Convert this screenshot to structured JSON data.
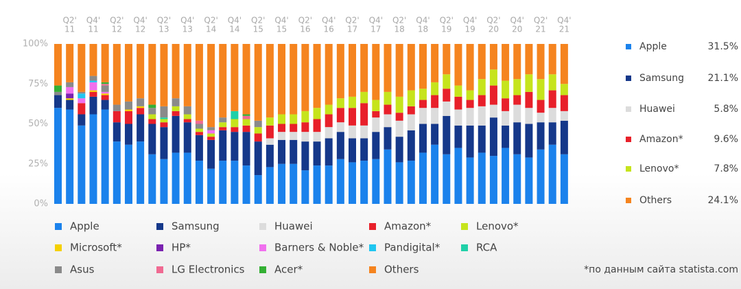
{
  "chart_data": {
    "type": "stacked_bar",
    "categories": [
      null,
      {
        "q": "Q2'",
        "y": "11"
      },
      null,
      {
        "q": "Q4'",
        "y": "11"
      },
      null,
      {
        "q": "Q2'",
        "y": "12"
      },
      null,
      {
        "q": "Q4'",
        "y": "12"
      },
      null,
      {
        "q": "Q2'",
        "y": "13"
      },
      null,
      {
        "q": "Q4'",
        "y": "13"
      },
      null,
      {
        "q": "Q2'",
        "y": "14"
      },
      null,
      {
        "q": "Q4'",
        "y": "14"
      },
      null,
      {
        "q": "Q2'",
        "y": "15"
      },
      null,
      {
        "q": "Q4'",
        "y": "15"
      },
      null,
      {
        "q": "Q2'",
        "y": "16"
      },
      null,
      {
        "q": "Q4'",
        "y": "16"
      },
      null,
      {
        "q": "Q2'",
        "y": "17"
      },
      null,
      {
        "q": "Q4'",
        "y": "17"
      },
      null,
      {
        "q": "Q2'",
        "y": "18"
      },
      null,
      {
        "q": "Q4'",
        "y": "18"
      },
      null,
      {
        "q": "Q2'",
        "y": "19"
      },
      null,
      {
        "q": "Q4'",
        "y": "19"
      },
      null,
      {
        "q": "Q2'",
        "y": "20"
      },
      null,
      {
        "q": "Q4'",
        "y": "20"
      },
      null,
      {
        "q": "Q2'",
        "y": "21"
      },
      null,
      {
        "q": "Q4'",
        "y": "21"
      }
    ],
    "series": [
      {
        "name": "Apple",
        "color": "#1b82ec",
        "values": [
          60,
          59,
          49,
          56,
          59,
          39,
          37,
          39,
          31,
          28,
          32,
          32,
          27,
          22,
          27,
          27,
          24,
          18,
          23,
          25,
          25,
          21,
          24,
          24,
          28,
          26,
          27,
          28,
          34,
          26,
          27,
          32,
          37,
          31,
          35,
          29,
          32,
          30,
          35,
          31,
          29,
          34,
          37,
          31
        ]
      },
      {
        "name": "Samsung",
        "color": "#15388a",
        "values": [
          8,
          6,
          7,
          11,
          6,
          12,
          13,
          17,
          19,
          20,
          23,
          19,
          16,
          18,
          19,
          18,
          21,
          21,
          14,
          15,
          15,
          18,
          15,
          17,
          17,
          15,
          14,
          17,
          14,
          16,
          19,
          18,
          13,
          24,
          14,
          20,
          17,
          24,
          14,
          20,
          21,
          17,
          14,
          21
        ]
      },
      {
        "name": "Huawei",
        "color": "#dcdcdc",
        "values": [
          0,
          0,
          0,
          0,
          0,
          0,
          0,
          0,
          0,
          0,
          0,
          0,
          0,
          0,
          0,
          0,
          0,
          0,
          4,
          5,
          5,
          6,
          6,
          7,
          6,
          8,
          8,
          9,
          8,
          10,
          10,
          10,
          10,
          9,
          10,
          11,
          12,
          8,
          9,
          11,
          10,
          6,
          9,
          6
        ]
      },
      {
        "name": "Amazon*",
        "color": "#e8202a",
        "values": [
          0,
          0,
          7,
          3,
          3,
          7,
          8,
          4,
          3,
          3,
          3,
          2,
          2,
          2,
          2,
          3,
          4,
          5,
          8,
          5,
          5,
          6,
          8,
          8,
          9,
          11,
          14,
          4,
          6,
          5,
          5,
          5,
          8,
          8,
          8,
          5,
          7,
          12,
          8,
          6,
          10,
          8,
          11,
          10
        ]
      },
      {
        "name": "Lenovo*",
        "color": "#c6e41c",
        "values": [
          0,
          0,
          0,
          0,
          0,
          0,
          0,
          0,
          3,
          2,
          3,
          3,
          2,
          2,
          3,
          5,
          4,
          4,
          5,
          6,
          6,
          7,
          7,
          6,
          6,
          7,
          7,
          7,
          8,
          10,
          10,
          7,
          8,
          9,
          7,
          6,
          10,
          10,
          11,
          10,
          11,
          13,
          10,
          7
        ]
      },
      {
        "name": "Microsoft*",
        "color": "#f5d000",
        "values": [
          0,
          1,
          0,
          1,
          1,
          0,
          1,
          1,
          0,
          0,
          0,
          0,
          0,
          0,
          0,
          0,
          0,
          0,
          0,
          0,
          0,
          0,
          0,
          0,
          0,
          0,
          0,
          0,
          0,
          0,
          0,
          0,
          0,
          0,
          0,
          0,
          0,
          0,
          0,
          0,
          0,
          0,
          0,
          0
        ]
      },
      {
        "name": "HP*",
        "color": "#7a22b0",
        "values": [
          0,
          3,
          0,
          0,
          0,
          0,
          0,
          0,
          0,
          0,
          0,
          0,
          0,
          0,
          0,
          0,
          0,
          0,
          0,
          0,
          0,
          0,
          0,
          0,
          0,
          0,
          0,
          0,
          0,
          0,
          0,
          0,
          0,
          0,
          0,
          0,
          0,
          0,
          0,
          0,
          0,
          0,
          0,
          0
        ]
      },
      {
        "name": "Barners & Noble*",
        "color": "#f070ee",
        "values": [
          0,
          4,
          3,
          5,
          1,
          0,
          0,
          0,
          0,
          0,
          0,
          0,
          0,
          2,
          0,
          0,
          0,
          0,
          0,
          0,
          0,
          0,
          0,
          0,
          0,
          0,
          0,
          0,
          0,
          0,
          0,
          0,
          0,
          0,
          0,
          0,
          0,
          0,
          0,
          0,
          0,
          0,
          0,
          0
        ]
      },
      {
        "name": "Pandigital*",
        "color": "#20c6f0",
        "values": [
          0,
          0,
          3,
          1,
          0,
          0,
          0,
          0,
          0,
          0,
          0,
          0,
          0,
          0,
          0,
          0,
          0,
          0,
          0,
          0,
          0,
          0,
          0,
          0,
          0,
          0,
          0,
          0,
          0,
          0,
          0,
          0,
          0,
          0,
          0,
          0,
          0,
          0,
          0,
          0,
          0,
          0,
          0,
          0
        ]
      },
      {
        "name": "RCA",
        "color": "#20d0a8",
        "values": [
          0,
          0,
          0,
          0,
          0,
          0,
          0,
          0,
          0,
          1,
          0,
          0,
          0,
          0,
          0,
          5,
          0,
          0,
          0,
          0,
          0,
          0,
          0,
          0,
          0,
          0,
          0,
          0,
          0,
          0,
          0,
          0,
          0,
          0,
          0,
          0,
          0,
          0,
          0,
          0,
          0,
          0,
          0,
          0
        ]
      },
      {
        "name": "Asus",
        "color": "#8a8a8a",
        "values": [
          2,
          3,
          1,
          3,
          4,
          4,
          5,
          5,
          4,
          7,
          5,
          5,
          3,
          2,
          3,
          0,
          0,
          4,
          0,
          0,
          0,
          0,
          0,
          0,
          0,
          0,
          0,
          0,
          0,
          0,
          0,
          0,
          0,
          0,
          0,
          0,
          0,
          0,
          0,
          0,
          0,
          0,
          0,
          0
        ]
      },
      {
        "name": "LG Electronics",
        "color": "#f06a92",
        "values": [
          0,
          0,
          0,
          0,
          1,
          0,
          0,
          0,
          0,
          0,
          0,
          0,
          2,
          0,
          0,
          0,
          2,
          0,
          0,
          0,
          0,
          0,
          0,
          0,
          0,
          0,
          0,
          0,
          0,
          0,
          0,
          0,
          0,
          0,
          0,
          0,
          0,
          0,
          0,
          0,
          0,
          0,
          0,
          0
        ]
      },
      {
        "name": "Acer*",
        "color": "#34b034",
        "values": [
          4,
          0,
          0,
          0,
          1,
          0,
          0,
          0,
          2,
          0,
          0,
          0,
          0,
          0,
          0,
          0,
          1,
          0,
          0,
          0,
          0,
          0,
          0,
          0,
          0,
          0,
          0,
          0,
          0,
          0,
          0,
          0,
          0,
          0,
          0,
          0,
          0,
          0,
          0,
          0,
          0,
          0,
          0,
          0
        ]
      },
      {
        "name": "Others",
        "color": "#f5841f",
        "values": [
          26,
          24,
          30,
          20,
          24,
          38,
          36,
          34,
          38,
          39,
          34,
          39,
          48,
          52,
          46,
          42,
          44,
          48,
          46,
          44,
          44,
          42,
          40,
          38,
          34,
          33,
          30,
          35,
          30,
          33,
          29,
          28,
          24,
          19,
          26,
          29,
          22,
          16,
          23,
          22,
          19,
          22,
          19,
          25
        ]
      }
    ],
    "ylim": [
      0,
      100
    ],
    "yticks": [
      {
        "value": 0,
        "label": "0%"
      },
      {
        "value": 25,
        "label": "25%"
      },
      {
        "value": 50,
        "label": "50%"
      },
      {
        "value": 75,
        "label": "75%"
      },
      {
        "value": 100,
        "label": "100%"
      }
    ],
    "grid": false,
    "summary": [
      {
        "name": "Apple",
        "color": "#1b82ec",
        "value": 31.5,
        "value_label": "31.5%"
      },
      {
        "name": "Samsung",
        "color": "#15388a",
        "value": 21.1,
        "value_label": "21.1%"
      },
      {
        "name": "Huawei",
        "color": "#dcdcdc",
        "value": 5.8,
        "value_label": "5.8%"
      },
      {
        "name": "Amazon*",
        "color": "#e8202a",
        "value": 9.6,
        "value_label": "9.6%"
      },
      {
        "name": "Lenovo*",
        "color": "#c6e41c",
        "value": 7.8,
        "value_label": "7.8%"
      },
      {
        "name": "Others",
        "color": "#f5841f",
        "value": 24.1,
        "value_label": "24.1%"
      }
    ],
    "note": "*по данным сайта statista.com"
  }
}
